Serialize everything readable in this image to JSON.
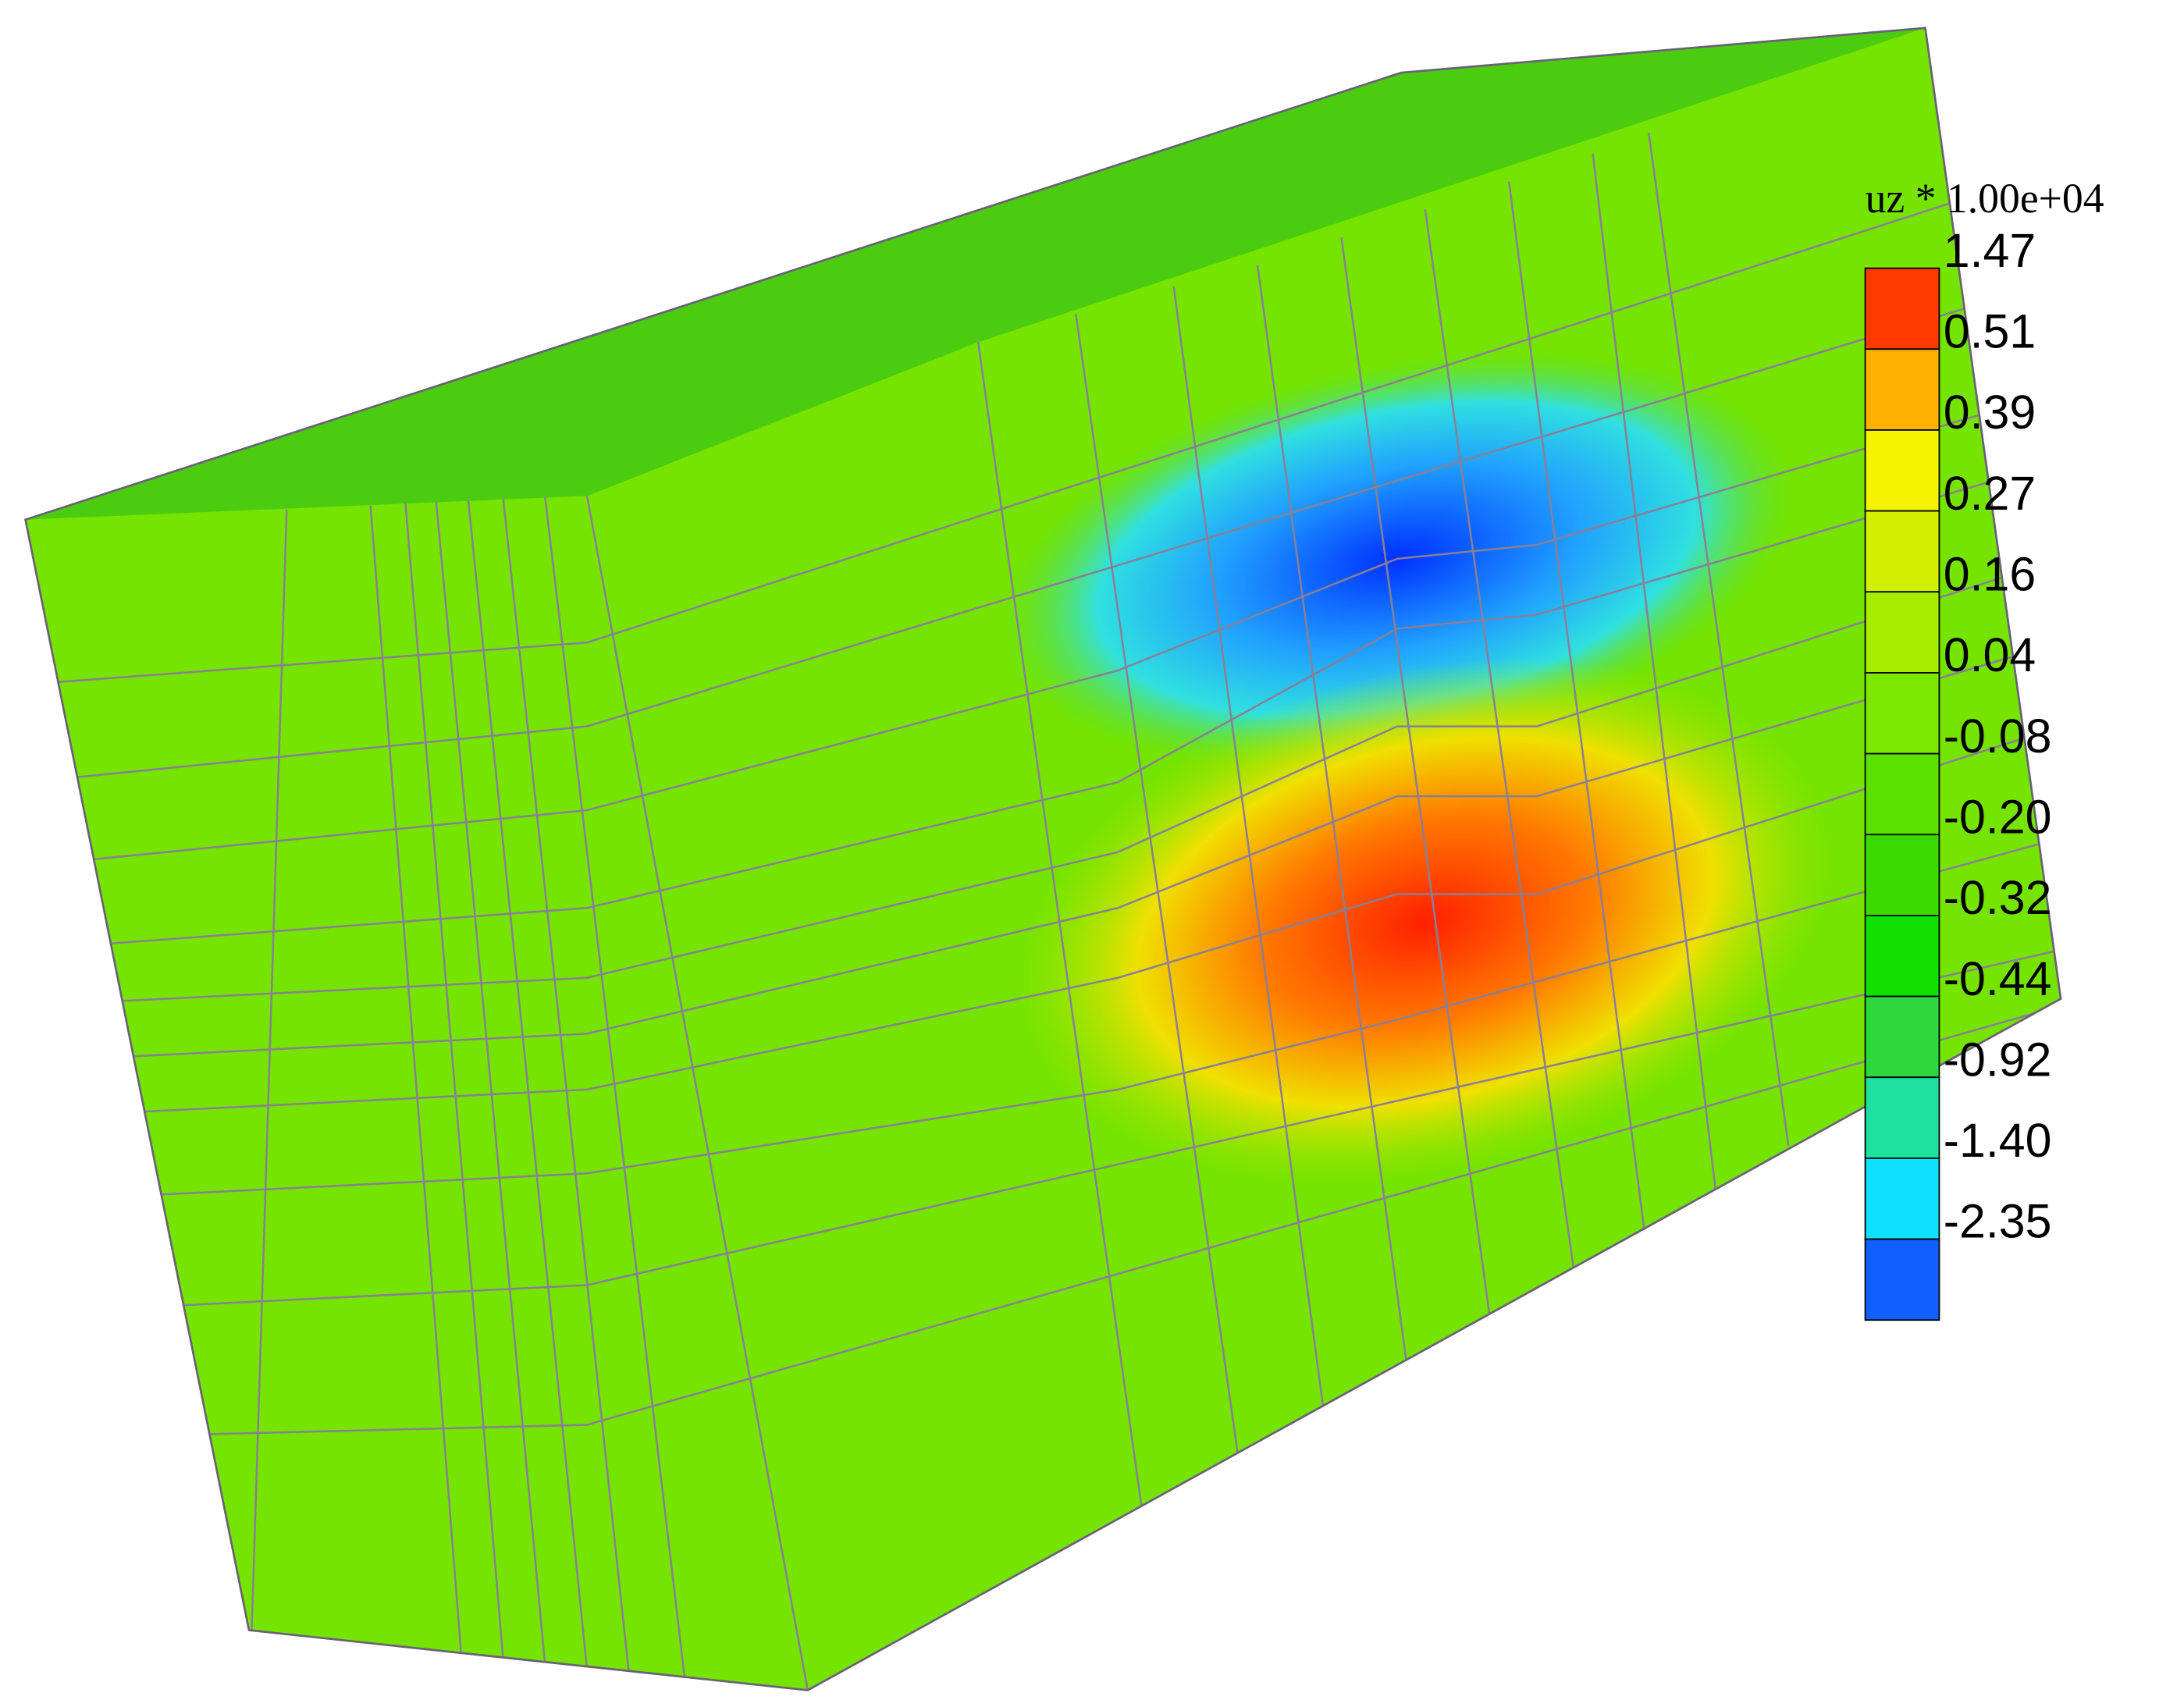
{
  "legend": {
    "title": "uz * 1.00e+04",
    "levels": [
      "1.47",
      "0.51",
      "0.39",
      "0.27",
      "0.16",
      "0.04",
      "-0.08",
      "-0.20",
      "-0.32",
      "-0.44",
      "-0.92",
      "-1.40",
      "-2.35"
    ],
    "band_colors": [
      "#ff3a00",
      "#ffb000",
      "#f4f400",
      "#d0f000",
      "#a8ec00",
      "#7ce800",
      "#5ce000",
      "#3ada00",
      "#10e000",
      "#30d840",
      "#20e0a0",
      "#10e0ff",
      "#1060ff"
    ]
  }
}
